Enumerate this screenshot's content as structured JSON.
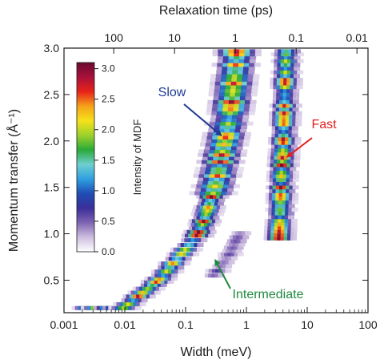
{
  "chart_data": {
    "type": "heatmap",
    "xlabel": "Width (meV)",
    "xscale": "log",
    "xlim": [
      0.001,
      100
    ],
    "xticks": [
      "0.001",
      "0.01",
      "0.1",
      "1",
      "10",
      "100"
    ],
    "x2label": "Relaxation time (ps)",
    "x2ticks": [
      "100",
      "10",
      "1",
      "0.1",
      "0.01"
    ],
    "ylabel": "Momentum transfer (Å⁻¹)",
    "ylim": [
      0.15,
      3.0
    ],
    "yticks": [
      "0.5",
      "1.0",
      "1.5",
      "2.0",
      "2.5",
      "3.0"
    ],
    "colorbar": {
      "label": "Intensity of MDF",
      "range": [
        0,
        3.1
      ],
      "ticks": [
        "0.0",
        "0.5",
        "1.0",
        "1.5",
        "2.0",
        "2.5",
        "3.0"
      ],
      "colors": [
        "#ffffff",
        "#cdbde0",
        "#7f64b3",
        "#3a2f99",
        "#1f4db5",
        "#2fa0e0",
        "#6fcfcf",
        "#2aaa3a",
        "#9cd12a",
        "#f6e21a",
        "#f5a21a",
        "#e8231a",
        "#a8103a",
        "#6a0a30"
      ]
    },
    "annotations": [
      {
        "text": "Slow",
        "color": "#1f3a93",
        "target": [
          0.4,
          2.05
        ]
      },
      {
        "text": "Fast",
        "color": "#e02020",
        "target": [
          4.5,
          1.82
        ]
      },
      {
        "text": "Intermediate",
        "color": "#1e8a3e",
        "target": [
          0.3,
          0.73
        ]
      }
    ],
    "ridges": [
      {
        "name": "",
        "points": [
          [
            0.0025,
            0.2
          ],
          [
            0.005,
            0.2
          ],
          [
            0.01,
            0.2
          ],
          [
            0.03,
            0.45
          ],
          [
            0.045,
            0.55
          ],
          [
            0.065,
            0.68
          ],
          [
            0.09,
            0.78
          ],
          [
            0.12,
            0.88
          ],
          [
            0.16,
            0.98
          ],
          [
            0.2,
            1.1
          ],
          [
            0.24,
            1.25
          ],
          [
            0.28,
            1.4
          ],
          [
            0.32,
            1.55
          ],
          [
            0.36,
            1.7
          ],
          [
            0.4,
            1.85
          ],
          [
            0.45,
            2.0
          ],
          [
            0.5,
            2.15
          ],
          [
            0.55,
            2.3
          ],
          [
            0.6,
            2.5
          ],
          [
            0.65,
            2.7
          ],
          [
            0.7,
            2.9
          ],
          [
            0.7,
            3.0
          ]
        ]
      },
      {
        "name": "",
        "points": [
          [
            3.6,
            0.95
          ],
          [
            3.7,
            1.1
          ],
          [
            3.8,
            1.3
          ],
          [
            3.9,
            1.5
          ],
          [
            4.0,
            1.7
          ],
          [
            4.2,
            1.9
          ],
          [
            4.3,
            2.1
          ],
          [
            4.4,
            2.3
          ],
          [
            4.5,
            2.5
          ],
          [
            4.6,
            2.7
          ],
          [
            4.7,
            2.9
          ],
          [
            4.8,
            3.0
          ]
        ]
      },
      {
        "name": "",
        "points": [
          [
            0.3,
            0.55
          ],
          [
            0.4,
            0.65
          ],
          [
            0.55,
            0.78
          ],
          [
            0.7,
            0.92
          ],
          [
            0.9,
            1.05
          ]
        ]
      }
    ]
  }
}
